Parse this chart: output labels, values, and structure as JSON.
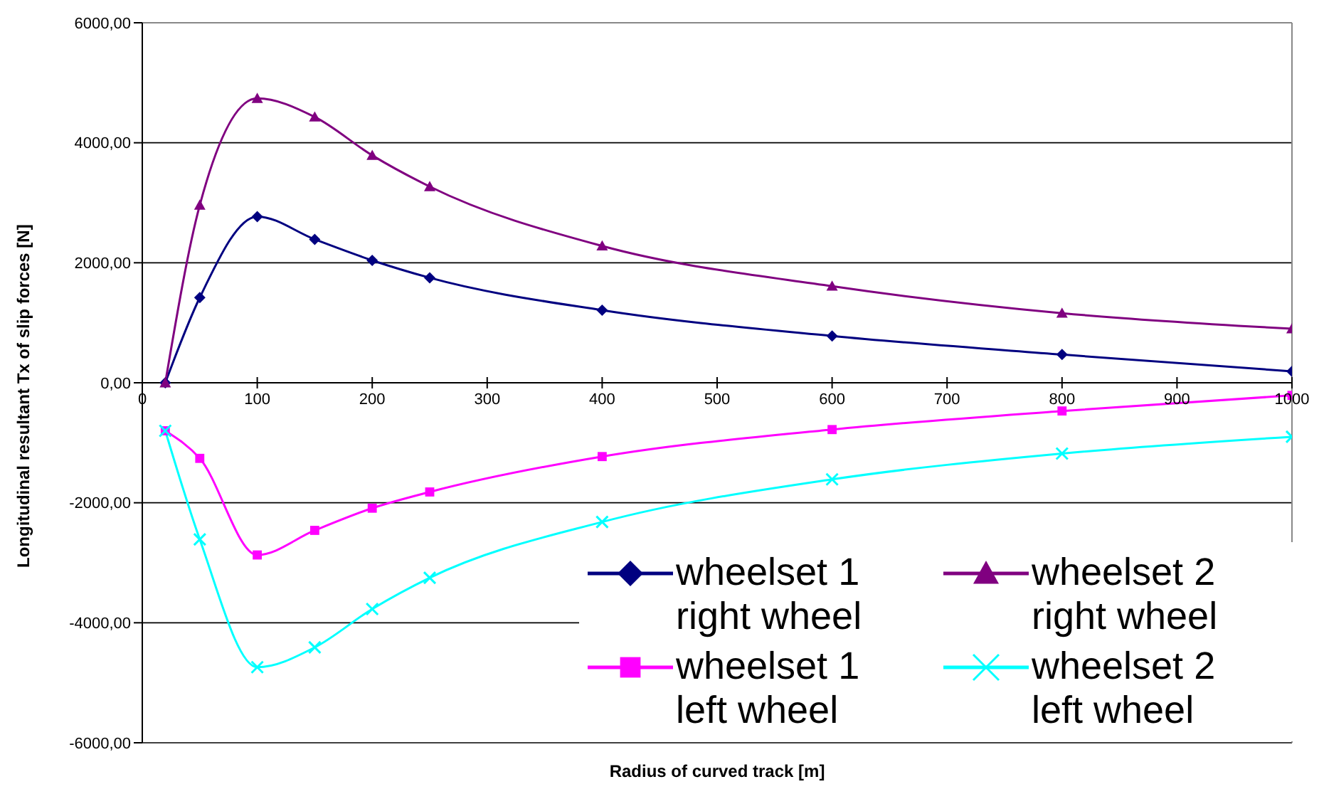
{
  "chart_data": {
    "type": "line",
    "xlabel": "Radius of curved track [m]",
    "ylabel": "Longitudinal resultant Tx of slip forces [N]",
    "x": [
      20,
      50,
      100,
      150,
      200,
      250,
      400,
      600,
      800,
      1000
    ],
    "series": [
      {
        "name": "wheelset 1 right wheel",
        "color": "#000080",
        "marker": "diamond",
        "values": [
          0,
          1420,
          2770,
          2390,
          2040,
          1750,
          1210,
          780,
          470,
          190
        ]
      },
      {
        "name": "wheelset 2 right wheel",
        "color": "#800080",
        "marker": "triangle",
        "values": [
          0,
          2960,
          4740,
          4430,
          3790,
          3270,
          2280,
          1610,
          1160,
          900
        ]
      },
      {
        "name": "wheelset 1 left wheel",
        "color": "#ff00ff",
        "marker": "square",
        "values": [
          -800,
          -1260,
          -2870,
          -2460,
          -2090,
          -1820,
          -1230,
          -780,
          -470,
          -210
        ]
      },
      {
        "name": "wheelset 2 left wheel",
        "color": "#00ffff",
        "marker": "cross",
        "values": [
          -800,
          -2610,
          -4740,
          -4410,
          -3770,
          -3250,
          -2320,
          -1610,
          -1180,
          -900
        ]
      }
    ],
    "xlim": [
      0,
      1000
    ],
    "xticks": [
      0,
      100,
      200,
      300,
      400,
      500,
      600,
      700,
      800,
      900,
      1000
    ],
    "ylim": [
      -6000,
      6000
    ],
    "yticks": [
      {
        "value": -6000,
        "label": "-6000,00"
      },
      {
        "value": -4000,
        "label": "-4000,00"
      },
      {
        "value": -2000,
        "label": "-2000,00"
      },
      {
        "value": 0,
        "label": "0,00"
      },
      {
        "value": 2000,
        "label": "2000,00"
      },
      {
        "value": 4000,
        "label": "4000,00"
      },
      {
        "value": 6000,
        "label": "6000,00"
      }
    ],
    "grid": "y",
    "legend": "bottom right"
  }
}
